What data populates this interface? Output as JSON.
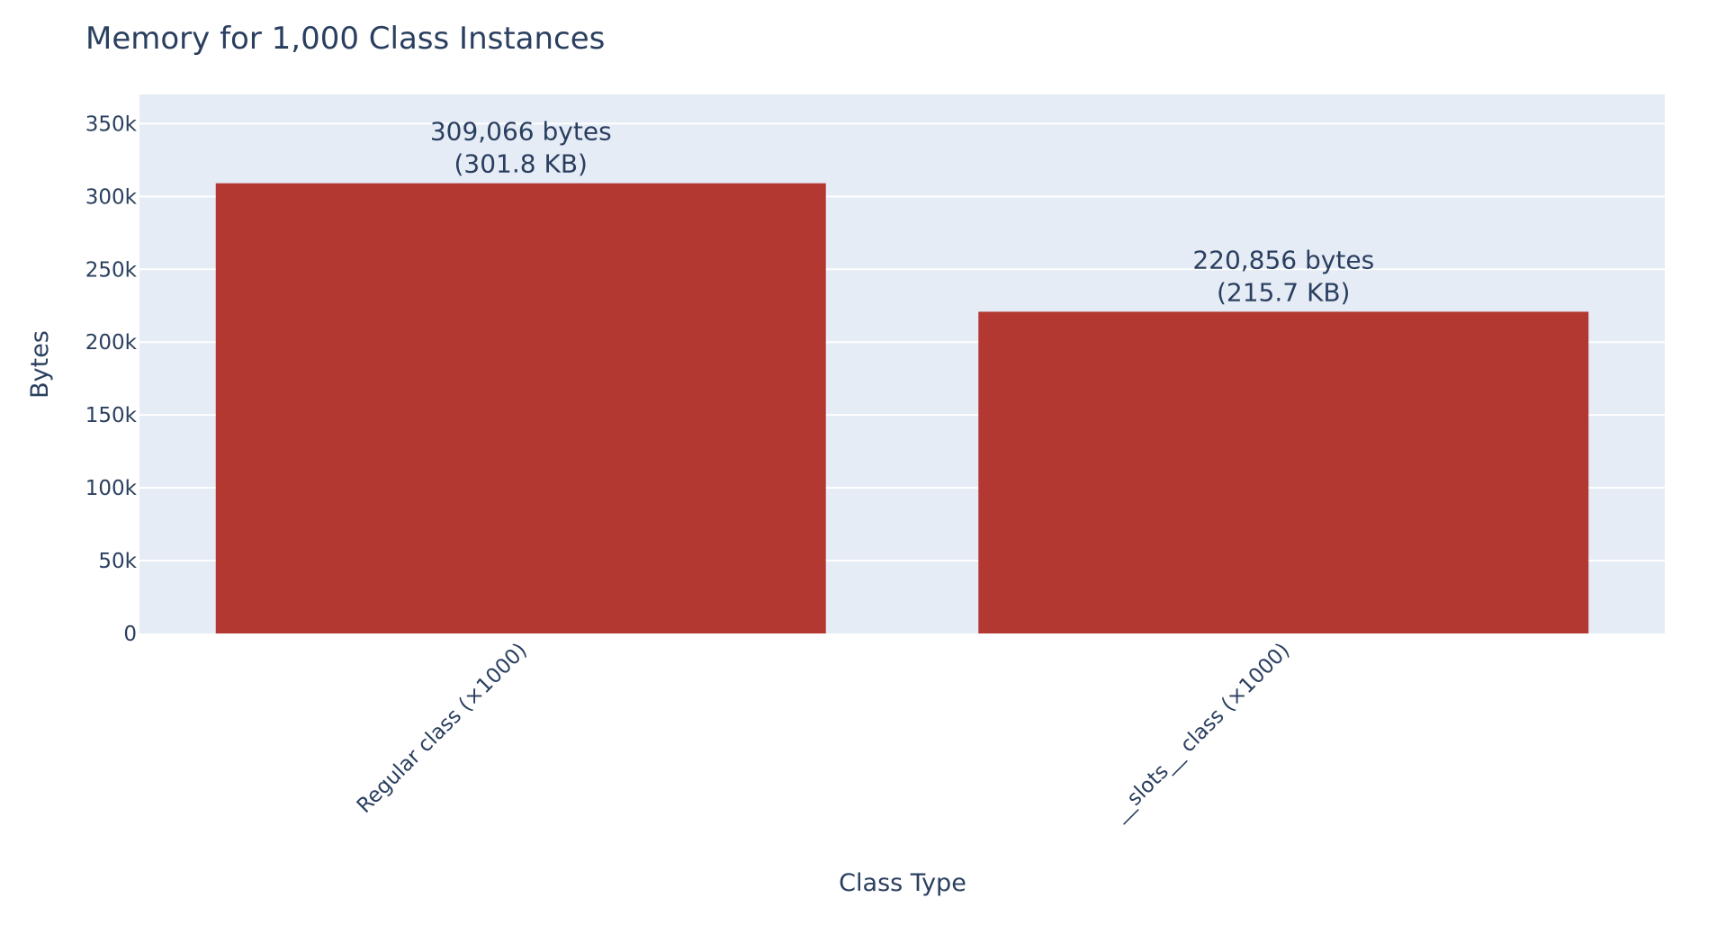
{
  "chart_data": {
    "type": "bar",
    "title": "Memory for 1,000 Class Instances",
    "xlabel": "Class Type",
    "ylabel": "Bytes",
    "categories": [
      "Regular class (×1000)",
      "__slots__ class (×1000)"
    ],
    "values": [
      309066,
      220856
    ],
    "data_labels": [
      [
        "309,066 bytes",
        "(301.8 KB)"
      ],
      [
        "220,856 bytes",
        "(215.7 KB)"
      ]
    ],
    "ylim": [
      0,
      370000
    ],
    "yticks": [
      0,
      50000,
      100000,
      150000,
      200000,
      250000,
      300000,
      350000
    ],
    "ytick_labels": [
      "0",
      "50k",
      "100k",
      "150k",
      "200k",
      "250k",
      "300k",
      "350k"
    ],
    "grid": true,
    "legend": "none",
    "colors": {
      "bar": "#b43832",
      "plot_bg": "#e5ecf6",
      "grid": "#ffffff",
      "text": "#2a3f5f"
    }
  }
}
